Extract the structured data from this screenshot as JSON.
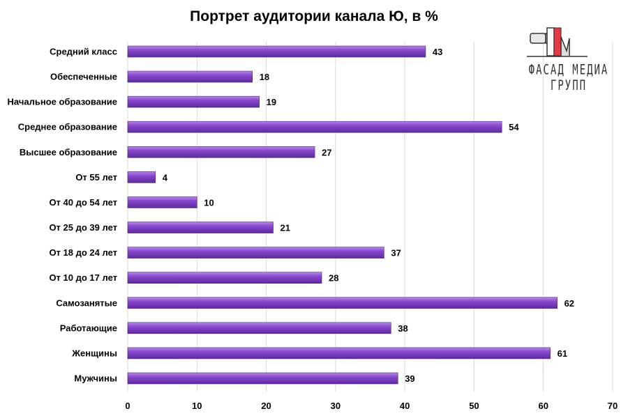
{
  "chart_data": {
    "type": "bar",
    "orientation": "horizontal",
    "title": "Портрет аудитории канала Ю, в %",
    "categories": [
      "Средний класс",
      "Обеспеченные",
      "Начальное образование",
      "Среднее образование",
      "Высшее образование",
      "От 55 лет",
      "От 40 до 54 лет",
      "От 25 до 39 лет",
      "От 18 до 24 лет",
      "От 10 до 17 лет",
      "Самозанятые",
      "Работающие",
      "Женщины",
      "Мужчины"
    ],
    "values": [
      43,
      18,
      19,
      54,
      27,
      4,
      10,
      21,
      37,
      28,
      62,
      38,
      61,
      39
    ],
    "xlim": [
      0,
      70
    ],
    "xticks": [
      0,
      10,
      20,
      30,
      40,
      50,
      60,
      70
    ],
    "grid": true,
    "data_labels": true,
    "bar_color": "#7a3fbf"
  },
  "logo": {
    "text": "ФАСАД МЕДИА ГРУПП",
    "accent": "#e63946"
  }
}
